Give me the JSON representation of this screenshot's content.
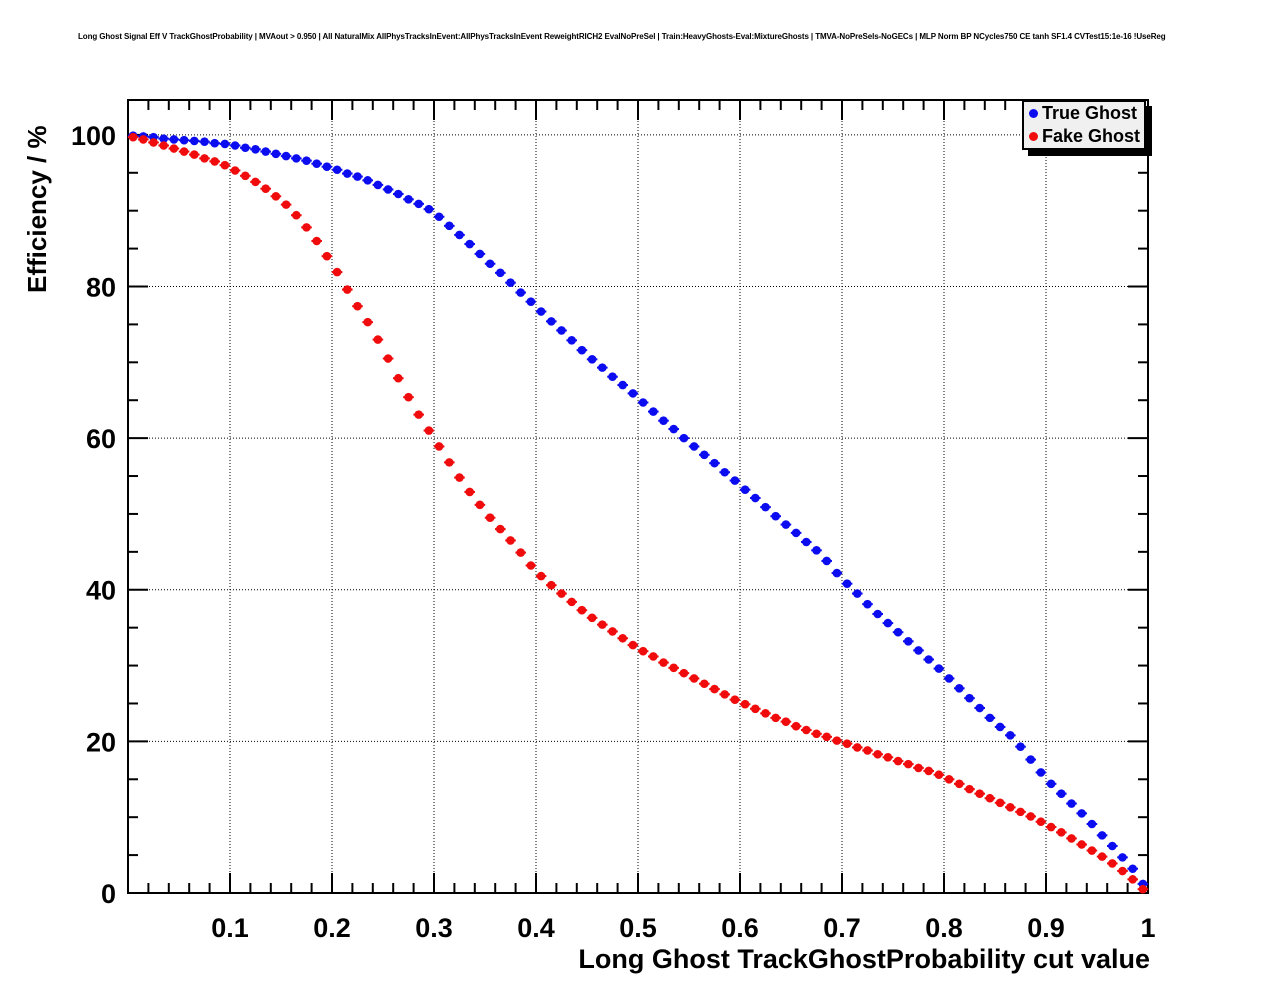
{
  "chart_data": {
    "type": "scatter",
    "title": "Long Ghost Signal Eff V TrackGhostProbability | MVAout > 0.950 | All NaturalMix AllPhysTracksInEvent:AllPhysTracksInEvent ReweightRICH2 EvalNoPreSel | Train:HeavyGhosts-Eval:MixtureGhosts | TMVA-NoPreSels-NoGECs | MLP Norm BP NCycles750 CE tanh SF1.4 CVTest15:1e-16 !UseReg",
    "xlabel": "Long Ghost TrackGhostProbability cut value",
    "ylabel": "Efficiency / %",
    "xlim": [
      0,
      1.0
    ],
    "ylim": [
      0,
      104.6
    ],
    "grid": "dotted-black-at-major-ticks",
    "frame_color": "#000000",
    "background": "#ffffff",
    "x_ticks": {
      "values": [
        0.1,
        0.2,
        0.3,
        0.4,
        0.5,
        0.6,
        0.7,
        0.8,
        0.9,
        1.0
      ],
      "labels": [
        "0.1",
        "0.2",
        "0.3",
        "0.4",
        "0.5",
        "0.6",
        "0.7",
        "0.8",
        "0.9",
        "1"
      ],
      "minor_step": 0.02
    },
    "y_ticks": {
      "values": [
        0,
        20,
        40,
        60,
        80,
        100
      ],
      "labels": [
        "0",
        "20",
        "40",
        "60",
        "80",
        "100"
      ],
      "minor_step": 5
    },
    "legend": {
      "position": "top-right",
      "fill": "#f0f0f0",
      "border": "#000000"
    },
    "x": [
      0.005,
      0.015,
      0.025,
      0.035,
      0.045,
      0.055,
      0.065,
      0.075,
      0.085,
      0.095,
      0.105,
      0.115,
      0.125,
      0.135,
      0.145,
      0.155,
      0.165,
      0.175,
      0.185,
      0.195,
      0.205,
      0.215,
      0.225,
      0.235,
      0.245,
      0.255,
      0.265,
      0.275,
      0.285,
      0.295,
      0.305,
      0.315,
      0.325,
      0.335,
      0.345,
      0.355,
      0.365,
      0.375,
      0.385,
      0.395,
      0.405,
      0.415,
      0.425,
      0.435,
      0.445,
      0.455,
      0.465,
      0.475,
      0.485,
      0.495,
      0.505,
      0.515,
      0.525,
      0.535,
      0.545,
      0.555,
      0.565,
      0.575,
      0.585,
      0.595,
      0.605,
      0.615,
      0.625,
      0.635,
      0.645,
      0.655,
      0.665,
      0.675,
      0.685,
      0.695,
      0.705,
      0.715,
      0.725,
      0.735,
      0.745,
      0.755,
      0.765,
      0.775,
      0.785,
      0.795,
      0.805,
      0.815,
      0.825,
      0.835,
      0.845,
      0.855,
      0.865,
      0.875,
      0.885,
      0.895,
      0.905,
      0.915,
      0.925,
      0.935,
      0.945,
      0.955,
      0.965,
      0.975,
      0.985,
      0.995
    ],
    "series": [
      {
        "name": "True Ghost",
        "color": "#0c0cf0",
        "marker": "filled-circle-with-x-error-bar",
        "values": [
          99.9,
          99.8,
          99.7,
          99.5,
          99.4,
          99.3,
          99.2,
          99.1,
          98.9,
          98.8,
          98.6,
          98.3,
          98.1,
          97.8,
          97.5,
          97.2,
          96.9,
          96.6,
          96.2,
          95.8,
          95.4,
          94.9,
          94.5,
          94.0,
          93.4,
          92.8,
          92.2,
          91.5,
          90.9,
          90.2,
          89.2,
          88.0,
          86.8,
          85.6,
          84.3,
          83.0,
          81.8,
          80.5,
          79.2,
          78.0,
          76.7,
          75.4,
          74.2,
          72.9,
          71.6,
          70.4,
          69.3,
          68.1,
          67.0,
          65.9,
          64.7,
          63.5,
          62.3,
          61.2,
          60.0,
          58.9,
          57.8,
          56.7,
          55.5,
          54.4,
          53.2,
          52.1,
          50.9,
          49.7,
          48.6,
          47.5,
          46.3,
          45.2,
          43.8,
          42.2,
          40.8,
          39.5,
          38.1,
          36.8,
          35.6,
          34.4,
          33.2,
          32.0,
          30.8,
          29.6,
          28.3,
          27.0,
          25.7,
          24.4,
          23.1,
          21.9,
          20.8,
          19.3,
          17.6,
          15.9,
          14.4,
          13.1,
          11.8,
          10.5,
          9.1,
          7.6,
          6.2,
          4.7,
          3.2,
          1.2
        ]
      },
      {
        "name": "Fake Ghost",
        "color": "#f00c0c",
        "marker": "filled-circle-with-x-error-bar",
        "values": [
          99.7,
          99.4,
          99.0,
          98.6,
          98.2,
          97.8,
          97.4,
          96.9,
          96.5,
          96.0,
          95.3,
          94.6,
          93.8,
          92.9,
          91.9,
          90.8,
          89.4,
          87.8,
          86.0,
          84.0,
          81.9,
          79.6,
          77.4,
          75.3,
          73.0,
          70.5,
          67.9,
          65.4,
          63.1,
          61.0,
          58.9,
          56.8,
          54.8,
          52.9,
          51.2,
          49.5,
          48.0,
          46.5,
          44.9,
          43.2,
          41.8,
          40.6,
          39.5,
          38.4,
          37.3,
          36.3,
          35.4,
          34.5,
          33.6,
          32.7,
          31.9,
          31.2,
          30.4,
          29.7,
          29.0,
          28.3,
          27.6,
          26.9,
          26.2,
          25.5,
          24.9,
          24.3,
          23.7,
          23.1,
          22.6,
          22.0,
          21.5,
          21.0,
          20.6,
          20.1,
          19.7,
          19.2,
          18.8,
          18.3,
          17.9,
          17.4,
          17.0,
          16.5,
          16.1,
          15.6,
          15.0,
          14.4,
          13.7,
          13.1,
          12.5,
          11.9,
          11.3,
          10.7,
          10.1,
          9.4,
          8.7,
          8.0,
          7.2,
          6.4,
          5.6,
          4.8,
          3.9,
          2.9,
          1.8,
          0.5
        ]
      }
    ]
  }
}
